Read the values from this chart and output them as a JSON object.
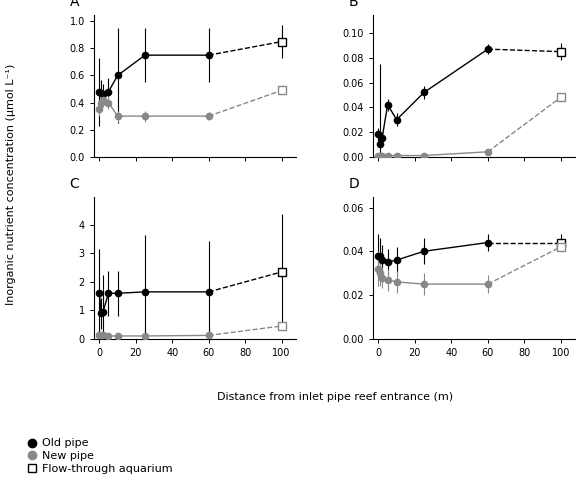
{
  "panel_A": {
    "title": "A",
    "old_pipe_x": [
      0,
      1,
      2,
      5,
      10,
      25,
      60
    ],
    "old_pipe_y": [
      0.48,
      0.47,
      0.46,
      0.48,
      0.6,
      0.75,
      0.75
    ],
    "old_pipe_yerr": [
      0.25,
      0.1,
      0.08,
      0.1,
      0.35,
      0.2,
      0.2
    ],
    "new_pipe_x": [
      0,
      1,
      2,
      5,
      10,
      25,
      60
    ],
    "new_pipe_y": [
      0.35,
      0.4,
      0.42,
      0.4,
      0.3,
      0.3,
      0.3
    ],
    "new_pipe_yerr": [
      0.05,
      0.06,
      0.05,
      0.05,
      0.04,
      0.04,
      0.03
    ],
    "aquarium_x": [
      100
    ],
    "aquarium_y": [
      0.85
    ],
    "aquarium_yerr": [
      0.12
    ],
    "aquarium2_x": [
      100
    ],
    "aquarium2_y": [
      0.49
    ],
    "aquarium2_yerr": [
      0.02
    ],
    "ylim": [
      0,
      1.05
    ],
    "yticks": [
      0,
      0.2,
      0.4,
      0.6,
      0.8,
      1.0
    ]
  },
  "panel_B": {
    "title": "B",
    "old_pipe_x": [
      0,
      1,
      2,
      5,
      10,
      25,
      60
    ],
    "old_pipe_y": [
      0.018,
      0.01,
      0.015,
      0.042,
      0.03,
      0.052,
      0.087
    ],
    "old_pipe_yerr": [
      0.005,
      0.065,
      0.005,
      0.005,
      0.005,
      0.005,
      0.004
    ],
    "new_pipe_x": [
      0,
      1,
      2,
      5,
      10,
      25,
      60
    ],
    "new_pipe_y": [
      0.001,
      0.001,
      0.001,
      0.001,
      0.001,
      0.001,
      0.004
    ],
    "new_pipe_yerr": [
      0.001,
      0.001,
      0.001,
      0.001,
      0.001,
      0.001,
      0.002
    ],
    "aquarium_x": [
      100
    ],
    "aquarium_y": [
      0.085
    ],
    "aquarium_yerr": [
      0.007
    ],
    "aquarium2_x": [
      100
    ],
    "aquarium2_y": [
      0.048
    ],
    "aquarium2_yerr": [
      0.002
    ],
    "ylim": [
      0,
      0.115
    ],
    "yticks": [
      0,
      0.02,
      0.04,
      0.06,
      0.08,
      0.1
    ]
  },
  "panel_C": {
    "title": "C",
    "old_pipe_x": [
      0,
      1,
      2,
      5,
      10,
      25,
      60
    ],
    "old_pipe_y": [
      1.6,
      0.9,
      0.95,
      1.6,
      1.6,
      1.65,
      1.65
    ],
    "old_pipe_yerr": [
      1.55,
      0.55,
      1.3,
      0.8,
      0.8,
      2.0,
      1.8
    ],
    "new_pipe_x": [
      0,
      1,
      2,
      5,
      10,
      25,
      60
    ],
    "new_pipe_y": [
      0.13,
      0.12,
      0.14,
      0.1,
      0.1,
      0.1,
      0.12
    ],
    "new_pipe_yerr": [
      0.05,
      0.04,
      0.04,
      0.03,
      0.03,
      0.03,
      0.04
    ],
    "aquarium_x": [
      100
    ],
    "aquarium_y": [
      2.35
    ],
    "aquarium_yerr": [
      2.05
    ],
    "aquarium2_x": [
      100
    ],
    "aquarium2_y": [
      0.45
    ],
    "aquarium2_yerr": [
      0.02
    ],
    "ylim": [
      0,
      5.0
    ],
    "yticks": [
      0,
      1,
      2,
      3,
      4
    ]
  },
  "panel_D": {
    "title": "D",
    "old_pipe_x": [
      0,
      1,
      2,
      5,
      10,
      25,
      60
    ],
    "old_pipe_y": [
      0.038,
      0.038,
      0.036,
      0.035,
      0.036,
      0.04,
      0.044
    ],
    "old_pipe_yerr": [
      0.01,
      0.008,
      0.007,
      0.006,
      0.006,
      0.006,
      0.004
    ],
    "new_pipe_x": [
      0,
      1,
      2,
      5,
      10,
      25,
      60
    ],
    "new_pipe_y": [
      0.032,
      0.03,
      0.028,
      0.027,
      0.026,
      0.025,
      0.025
    ],
    "new_pipe_yerr": [
      0.008,
      0.006,
      0.005,
      0.005,
      0.005,
      0.005,
      0.004
    ],
    "aquarium_x": [
      100
    ],
    "aquarium_y": [
      0.044
    ],
    "aquarium_yerr": [
      0.004
    ],
    "aquarium2_x": [
      100
    ],
    "aquarium2_y": [
      0.042
    ],
    "aquarium2_yerr": [
      0.002
    ],
    "ylim": [
      0,
      0.065
    ],
    "yticks": [
      0,
      0.02,
      0.04,
      0.06
    ]
  },
  "xlim": [
    -3,
    108
  ],
  "xticks": [
    0,
    20,
    40,
    60,
    80,
    100
  ],
  "old_pipe_color": "#000000",
  "new_pipe_color": "#888888",
  "xlabel": "Distance from inlet pipe reef entrance (m)",
  "ylabel": "Inorganic nutrient concentration (μmol L⁻¹)"
}
